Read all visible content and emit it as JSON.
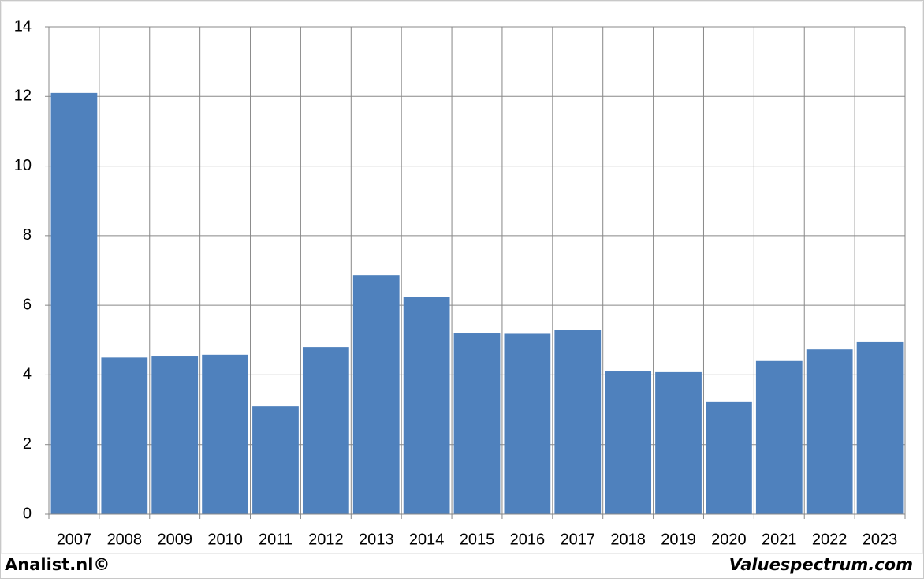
{
  "chart_data": {
    "type": "bar",
    "categories": [
      "2007",
      "2008",
      "2009",
      "2010",
      "2011",
      "2012",
      "2013",
      "2014",
      "2015",
      "2016",
      "2017",
      "2018",
      "2019",
      "2020",
      "2021",
      "2022",
      "2023"
    ],
    "values": [
      12.1,
      4.5,
      4.53,
      4.58,
      3.1,
      4.8,
      6.86,
      6.25,
      5.21,
      5.2,
      5.3,
      4.1,
      4.08,
      3.22,
      4.4,
      4.73,
      4.94
    ],
    "color": "#4f81bd",
    "ylim": [
      0,
      14
    ],
    "yticks": [
      0,
      2,
      4,
      6,
      8,
      10,
      12,
      14
    ],
    "grid": true
  },
  "footer": {
    "left": "Analist.nl©",
    "right": "Valuespectrum.com"
  }
}
